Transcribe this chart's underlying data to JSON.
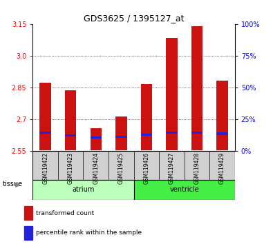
{
  "title": "GDS3625 / 1395127_at",
  "samples": [
    "GSM119422",
    "GSM119423",
    "GSM119424",
    "GSM119425",
    "GSM119426",
    "GSM119427",
    "GSM119428",
    "GSM119429"
  ],
  "groups": [
    {
      "name": "atrium",
      "indices": [
        0,
        1,
        2,
        3
      ],
      "color": "#bbffbb"
    },
    {
      "name": "ventricle",
      "indices": [
        4,
        5,
        6,
        7
      ],
      "color": "#44ee44"
    }
  ],
  "baseline": 2.555,
  "transformed_counts": [
    2.873,
    2.838,
    2.658,
    2.715,
    2.868,
    3.085,
    3.14,
    2.885
  ],
  "blue_positions": [
    2.638,
    2.625,
    2.615,
    2.617,
    2.628,
    2.638,
    2.638,
    2.633
  ],
  "ylim_left": [
    2.55,
    3.15
  ],
  "ylim_right": [
    0,
    100
  ],
  "yticks_left": [
    2.55,
    2.7,
    2.85,
    3.0,
    3.15
  ],
  "yticks_right": [
    0,
    25,
    50,
    75,
    100
  ],
  "ytick_labels_right": [
    "0%",
    "25%",
    "50%",
    "75%",
    "100%"
  ],
  "bar_color_red": "#cc1111",
  "bar_color_blue": "#2222dd",
  "bar_width": 0.45,
  "legend_items": [
    {
      "label": "transformed count",
      "color": "#cc1111"
    },
    {
      "label": "percentile rank within the sample",
      "color": "#2222dd"
    }
  ]
}
